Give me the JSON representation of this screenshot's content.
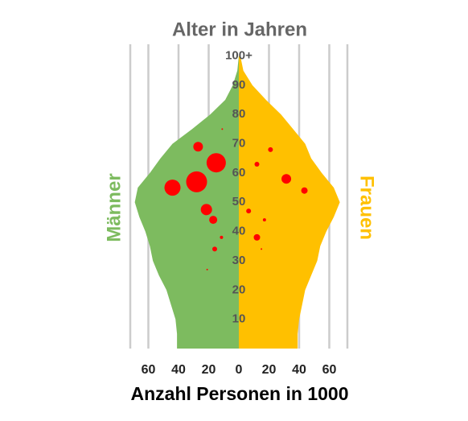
{
  "chart_data": {
    "type": "pyramid",
    "title": "Alter in Jahren",
    "xlabel": "Anzahl Personen in 1000",
    "ages": [
      0,
      5,
      10,
      15,
      20,
      25,
      30,
      35,
      40,
      45,
      50,
      55,
      60,
      65,
      70,
      75,
      80,
      85,
      90,
      95,
      100
    ],
    "series": [
      {
        "name": "Männer",
        "color": "#7dbb5f",
        "values": [
          -41,
          -41,
          -42,
          -45,
          -48,
          -53,
          -57,
          -59,
          -62,
          -66,
          -69,
          -67,
          -59,
          -52,
          -44,
          -31,
          -19,
          -9,
          -4,
          -1,
          0
        ]
      },
      {
        "name": "Frauen",
        "color": "#ffc000",
        "values": [
          39,
          39,
          40,
          42,
          44,
          48,
          52,
          54,
          58,
          63,
          67,
          63,
          55,
          48,
          44,
          36,
          28,
          18,
          9,
          3,
          1
        ]
      }
    ],
    "bubbles": {
      "color": "#ff0000",
      "x": [
        -27,
        -15,
        -28,
        -44,
        -21.5,
        -17,
        -11.5,
        -16,
        -11,
        -21,
        21,
        12,
        31.5,
        43.5,
        6.5,
        17,
        12,
        15
      ],
      "y": [
        69,
        63.5,
        57,
        55,
        47.5,
        44,
        38,
        34,
        75,
        27,
        68,
        63,
        58,
        54,
        47,
        44,
        38,
        34
      ],
      "size": [
        36,
        144,
        169,
        100,
        49,
        25,
        4,
        9,
        1,
        1,
        9,
        9,
        36,
        16,
        9,
        4,
        16,
        1
      ]
    },
    "xlim": [
      -72,
      72
    ],
    "ylim": [
      0,
      104
    ],
    "xticks": [
      {
        "value": -60,
        "label": "60"
      },
      {
        "value": -40,
        "label": "40"
      },
      {
        "value": -20,
        "label": "20"
      },
      0,
      20,
      40,
      60
    ],
    "yticks": [
      10,
      20,
      30,
      40,
      50,
      60,
      70,
      80,
      90,
      {
        "value": 100,
        "label": "100+"
      }
    ],
    "grid": true
  }
}
